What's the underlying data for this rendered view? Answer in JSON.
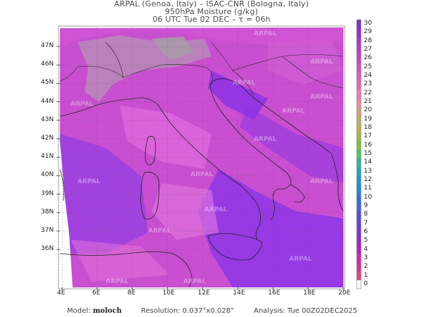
{
  "header": {
    "line1": "ARPAL (Genoa, Italy)  –  ISAC-CNR (Bologna, Italy)",
    "line2": "950hPa Moisture (g/kg)",
    "line3": "06 UTC Tue 02 DEC  –  τ = 06h"
  },
  "map": {
    "lon_ticks": [
      "4E",
      "6E",
      "8E",
      "10E",
      "12E",
      "14E",
      "16E",
      "18E",
      "20E"
    ],
    "lat_ticks": [
      "47N",
      "46N",
      "45N",
      "44N",
      "43N",
      "42N",
      "41N",
      "40N",
      "39N",
      "38N",
      "37N",
      "36N"
    ],
    "watermark": "ARPAL",
    "background_color": "#c84fd0",
    "land_overlay_color": "#e070e0"
  },
  "colorbar": {
    "labels": [
      "30",
      "29",
      "28",
      "27",
      "26",
      "25",
      "24",
      "23",
      "22",
      "21",
      "20",
      "19",
      "18",
      "17",
      "16",
      "15",
      "14",
      "13",
      "12",
      "11",
      "10",
      "9",
      "8",
      "7",
      "6",
      "5",
      "4",
      "3",
      "2",
      "1",
      "0"
    ],
    "colors": [
      "#7a2fd6",
      "#9a2ad8",
      "#b030d8",
      "#c038d4",
      "#d03fd0",
      "#d84cc8",
      "#e058c0",
      "#e868b8",
      "#f078b0",
      "#e88a9a",
      "#d89a80",
      "#c8a868",
      "#b8b050",
      "#a0b840",
      "#80c040",
      "#50c060",
      "#30b890",
      "#20a8b8",
      "#2098d0",
      "#2088e0",
      "#3070e8",
      "#4060ec",
      "#5048f0",
      "#6a38ec",
      "#8030e4",
      "#a020d8",
      "#c018c8",
      "#d820b0",
      "#e02a98",
      "#e84080",
      "#f8f8f8"
    ]
  },
  "footer": {
    "model_label": "Model:",
    "model_value": "moloch",
    "resolution": "Resolution: 0.037°x0.028°",
    "analysis": "Analysis: Tue 00Z02DEC2025"
  }
}
